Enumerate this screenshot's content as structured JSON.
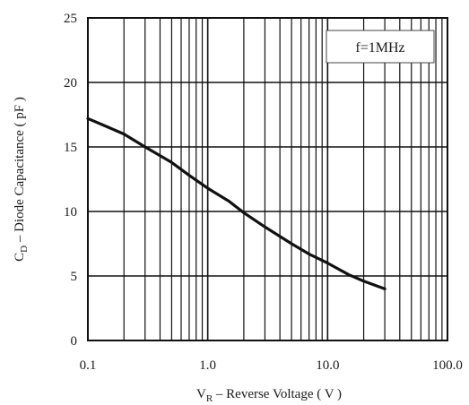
{
  "chart_data": {
    "type": "line",
    "xscale": "log",
    "xlim": [
      0.1,
      100
    ],
    "ylim": [
      0,
      25
    ],
    "xticks": [
      {
        "value": 0.1,
        "label": "0.1"
      },
      {
        "value": 1,
        "label": "1.0"
      },
      {
        "value": 10,
        "label": "10.0"
      },
      {
        "value": 100,
        "label": "100.0"
      }
    ],
    "yticks": [
      {
        "value": 0,
        "label": "0"
      },
      {
        "value": 5,
        "label": "5"
      },
      {
        "value": 10,
        "label": "10"
      },
      {
        "value": 15,
        "label": "15"
      },
      {
        "value": 20,
        "label": "20"
      },
      {
        "value": 25,
        "label": "25"
      }
    ],
    "xlabel": {
      "main": "V",
      "sub": "R",
      "rest": " – Reverse Voltage ( V )"
    },
    "ylabel": {
      "main": "C",
      "sub": "D",
      "rest": " – Diode Capacitance ( pF )"
    },
    "grid": true,
    "annotation": "f=1MHz",
    "series": [
      {
        "x": [
          0.1,
          0.15,
          0.2,
          0.3,
          0.5,
          0.7,
          1,
          1.5,
          2,
          3,
          5,
          7,
          10,
          15,
          20,
          30
        ],
        "y": [
          17.2,
          16.5,
          16.0,
          15.0,
          13.8,
          12.8,
          11.8,
          10.8,
          9.9,
          8.8,
          7.5,
          6.7,
          6.0,
          5.1,
          4.6,
          4.0
        ]
      }
    ]
  }
}
